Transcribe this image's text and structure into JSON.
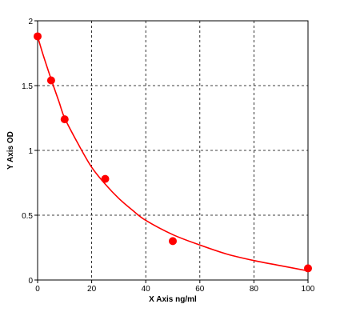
{
  "chart_data": {
    "type": "scatter",
    "title": "",
    "xlabel": "X Axis ng/ml",
    "ylabel": "Y Axis OD",
    "xlim": [
      0,
      100
    ],
    "ylim": [
      0,
      2
    ],
    "xticks": [
      0,
      20,
      40,
      60,
      80,
      100
    ],
    "yticks": [
      0,
      0.5,
      1,
      1.5,
      2
    ],
    "xtick_labels": [
      "0",
      "20",
      "40",
      "60",
      "80",
      "100"
    ],
    "ytick_labels": [
      "0",
      "0.5",
      "1",
      "1.5",
      "2"
    ],
    "grid": true,
    "colors": {
      "marker": "#ff0000",
      "curve": "#ff0000",
      "grid": "#000000",
      "frame": "#000000"
    },
    "series": [
      {
        "points": [
          {
            "x": 0,
            "y": 1.88
          },
          {
            "x": 5,
            "y": 1.54
          },
          {
            "x": 10,
            "y": 1.24
          },
          {
            "x": 25,
            "y": 0.78
          },
          {
            "x": 50,
            "y": 0.3
          },
          {
            "x": 100,
            "y": 0.09
          }
        ]
      }
    ],
    "curve": [
      {
        "x": 0,
        "y": 1.88
      },
      {
        "x": 2,
        "y": 1.74
      },
      {
        "x": 5,
        "y": 1.55
      },
      {
        "x": 8,
        "y": 1.37
      },
      {
        "x": 10,
        "y": 1.25
      },
      {
        "x": 15,
        "y": 1.05
      },
      {
        "x": 20,
        "y": 0.87
      },
      {
        "x": 25,
        "y": 0.74
      },
      {
        "x": 30,
        "y": 0.63
      },
      {
        "x": 35,
        "y": 0.54
      },
      {
        "x": 40,
        "y": 0.46
      },
      {
        "x": 50,
        "y": 0.35
      },
      {
        "x": 60,
        "y": 0.27
      },
      {
        "x": 70,
        "y": 0.2
      },
      {
        "x": 80,
        "y": 0.15
      },
      {
        "x": 90,
        "y": 0.11
      },
      {
        "x": 100,
        "y": 0.07
      }
    ]
  }
}
